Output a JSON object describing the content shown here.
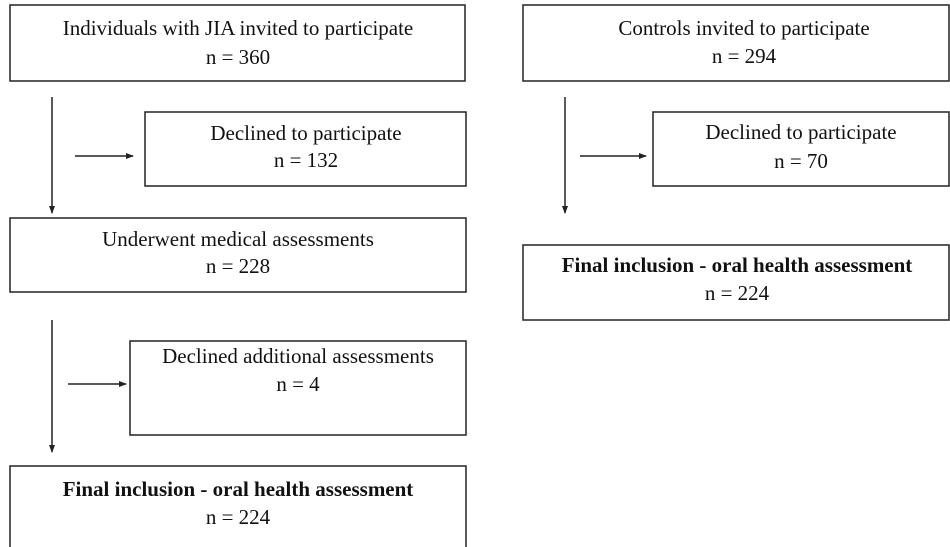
{
  "nodes": [
    {
      "label": "Individuals with JIA invited to participate",
      "count": "n = 360"
    },
    {
      "label": "Declined to participate",
      "count": "n = 132"
    },
    {
      "label": "Underwent medical assessments",
      "count": "n = 228"
    },
    {
      "label": "Declined additional assessments",
      "count": "n = 4"
    },
    {
      "label": "Final inclusion - oral health assessment",
      "count": "n = 224"
    },
    {
      "label": "Controls invited to participate",
      "count": "n = 294"
    },
    {
      "label": "Declined to participate",
      "count": "n = 70"
    },
    {
      "label": "Final inclusion - oral health assessment",
      "count": "n = 224"
    }
  ]
}
